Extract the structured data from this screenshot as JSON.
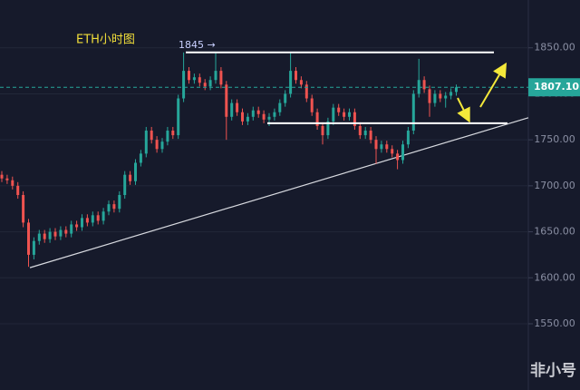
{
  "chart_data": {
    "type": "candlestick",
    "title": "ETH小时图",
    "ylim": [
      1478,
      1902
    ],
    "yticks": [
      {
        "value": 1550,
        "label": "1550.00"
      },
      {
        "value": 1600,
        "label": "1600.00"
      },
      {
        "value": 1650,
        "label": "1650.00"
      },
      {
        "value": 1700,
        "label": "1700.00"
      },
      {
        "value": 1750,
        "label": "1750.00"
      },
      {
        "value": 1800,
        "label": "1800.00"
      },
      {
        "value": 1850,
        "label": "1850.00"
      }
    ],
    "grid": true,
    "up_color": "#26a69a",
    "down_color": "#ef5350",
    "last_price": {
      "value": 1807.1,
      "label": "1807.10"
    },
    "resistance": 1845,
    "resistance_label": "1845 →",
    "support": 1768,
    "trendline": [
      1611,
      1774
    ],
    "watermark": "非小号",
    "candles": [
      [
        1712,
        1716,
        1704,
        1708
      ],
      [
        1708,
        1712,
        1702,
        1706
      ],
      [
        1706,
        1710,
        1696,
        1700
      ],
      [
        1700,
        1704,
        1686,
        1690
      ],
      [
        1690,
        1694,
        1655,
        1660
      ],
      [
        1660,
        1664,
        1612,
        1625
      ],
      [
        1625,
        1644,
        1620,
        1640
      ],
      [
        1640,
        1652,
        1636,
        1648
      ],
      [
        1648,
        1652,
        1638,
        1642
      ],
      [
        1642,
        1654,
        1638,
        1650
      ],
      [
        1650,
        1654,
        1641,
        1645
      ],
      [
        1645,
        1656,
        1641,
        1652
      ],
      [
        1652,
        1656,
        1644,
        1648
      ],
      [
        1648,
        1662,
        1644,
        1658
      ],
      [
        1658,
        1662,
        1651,
        1655
      ],
      [
        1655,
        1669,
        1651,
        1665
      ],
      [
        1665,
        1669,
        1656,
        1660
      ],
      [
        1660,
        1672,
        1656,
        1668
      ],
      [
        1668,
        1672,
        1658,
        1662
      ],
      [
        1662,
        1676,
        1658,
        1672
      ],
      [
        1672,
        1684,
        1668,
        1680
      ],
      [
        1680,
        1684,
        1671,
        1675
      ],
      [
        1675,
        1694,
        1671,
        1690
      ],
      [
        1690,
        1716,
        1686,
        1712
      ],
      [
        1712,
        1716,
        1701,
        1705
      ],
      [
        1705,
        1729,
        1701,
        1725
      ],
      [
        1725,
        1739,
        1721,
        1735
      ],
      [
        1735,
        1764,
        1731,
        1760
      ],
      [
        1760,
        1764,
        1746,
        1750
      ],
      [
        1750,
        1754,
        1736,
        1740
      ],
      [
        1740,
        1752,
        1736,
        1748
      ],
      [
        1748,
        1764,
        1744,
        1760
      ],
      [
        1760,
        1764,
        1751,
        1755
      ],
      [
        1755,
        1799,
        1751,
        1795
      ],
      [
        1795,
        1845,
        1791,
        1825
      ],
      [
        1825,
        1829,
        1811,
        1815
      ],
      [
        1815,
        1822,
        1811,
        1818
      ],
      [
        1818,
        1822,
        1808,
        1812
      ],
      [
        1812,
        1816,
        1804,
        1808
      ],
      [
        1808,
        1819,
        1804,
        1815
      ],
      [
        1815,
        1845,
        1811,
        1825
      ],
      [
        1825,
        1829,
        1806,
        1810
      ],
      [
        1810,
        1814,
        1750,
        1775
      ],
      [
        1775,
        1794,
        1771,
        1790
      ],
      [
        1790,
        1794,
        1776,
        1780
      ],
      [
        1780,
        1784,
        1766,
        1770
      ],
      [
        1770,
        1779,
        1766,
        1775
      ],
      [
        1775,
        1786,
        1771,
        1782
      ],
      [
        1782,
        1786,
        1774,
        1778
      ],
      [
        1778,
        1782,
        1768,
        1772
      ],
      [
        1772,
        1779,
        1765,
        1775
      ],
      [
        1775,
        1784,
        1771,
        1780
      ],
      [
        1780,
        1794,
        1776,
        1790
      ],
      [
        1790,
        1804,
        1786,
        1800
      ],
      [
        1800,
        1845,
        1796,
        1825
      ],
      [
        1825,
        1829,
        1811,
        1815
      ],
      [
        1815,
        1819,
        1806,
        1810
      ],
      [
        1810,
        1814,
        1791,
        1795
      ],
      [
        1795,
        1799,
        1776,
        1780
      ],
      [
        1780,
        1784,
        1761,
        1765
      ],
      [
        1765,
        1769,
        1745,
        1755
      ],
      [
        1755,
        1774,
        1751,
        1770
      ],
      [
        1770,
        1789,
        1766,
        1785
      ],
      [
        1785,
        1789,
        1776,
        1780
      ],
      [
        1780,
        1784,
        1771,
        1775
      ],
      [
        1775,
        1784,
        1771,
        1780
      ],
      [
        1780,
        1784,
        1761,
        1765
      ],
      [
        1765,
        1769,
        1751,
        1755
      ],
      [
        1755,
        1764,
        1751,
        1760
      ],
      [
        1760,
        1764,
        1746,
        1750
      ],
      [
        1750,
        1754,
        1724,
        1740
      ],
      [
        1740,
        1749,
        1736,
        1745
      ],
      [
        1745,
        1749,
        1736,
        1740
      ],
      [
        1740,
        1744,
        1731,
        1735
      ],
      [
        1735,
        1739,
        1718,
        1728
      ],
      [
        1728,
        1749,
        1724,
        1745
      ],
      [
        1745,
        1764,
        1741,
        1760
      ],
      [
        1760,
        1804,
        1756,
        1800
      ],
      [
        1800,
        1838,
        1796,
        1815
      ],
      [
        1815,
        1819,
        1801,
        1805
      ],
      [
        1805,
        1809,
        1775,
        1790
      ],
      [
        1790,
        1804,
        1786,
        1800
      ],
      [
        1800,
        1804,
        1791,
        1795
      ],
      [
        1795,
        1802,
        1785,
        1798
      ],
      [
        1798,
        1806,
        1794,
        1802
      ],
      [
        1802,
        1810,
        1798,
        1807.1
      ]
    ]
  }
}
